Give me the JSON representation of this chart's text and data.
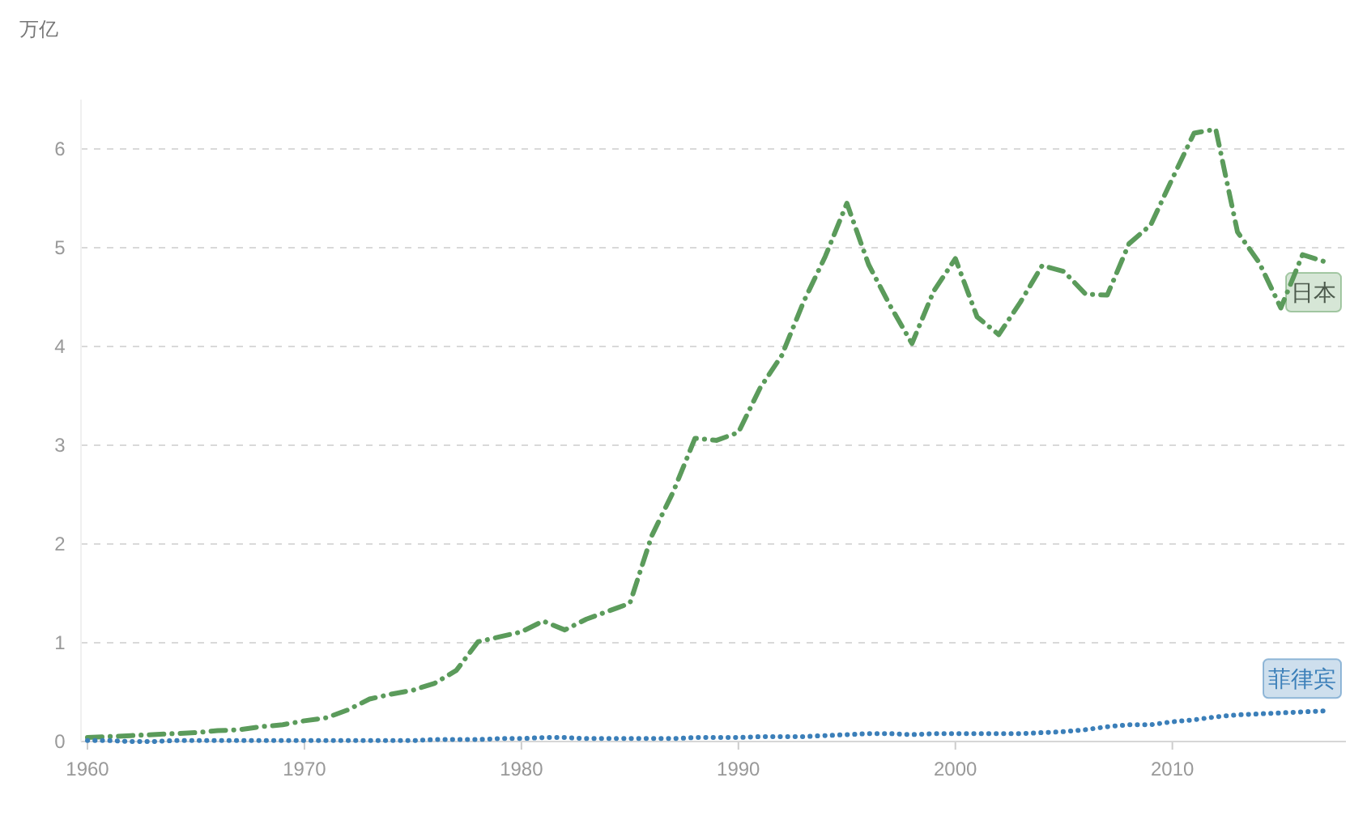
{
  "chart_data": {
    "type": "line",
    "ylabel": "万亿",
    "x": [
      1960,
      1961,
      1962,
      1963,
      1964,
      1965,
      1966,
      1967,
      1968,
      1969,
      1970,
      1971,
      1972,
      1973,
      1974,
      1975,
      1976,
      1977,
      1978,
      1979,
      1980,
      1981,
      1982,
      1983,
      1984,
      1985,
      1986,
      1987,
      1988,
      1989,
      1990,
      1991,
      1992,
      1993,
      1994,
      1995,
      1996,
      1997,
      1998,
      1999,
      2000,
      2001,
      2002,
      2003,
      2004,
      2005,
      2006,
      2007,
      2008,
      2009,
      2010,
      2011,
      2012,
      2013,
      2014,
      2015,
      2016,
      2017
    ],
    "series": [
      {
        "name": "日本",
        "color": "#5b9b5b",
        "line_style": "dashed",
        "values": [
          0.04,
          0.05,
          0.06,
          0.07,
          0.08,
          0.09,
          0.11,
          0.12,
          0.15,
          0.17,
          0.21,
          0.24,
          0.32,
          0.43,
          0.48,
          0.52,
          0.59,
          0.72,
          1.01,
          1.06,
          1.11,
          1.22,
          1.13,
          1.24,
          1.32,
          1.4,
          2.08,
          2.53,
          3.07,
          3.05,
          3.13,
          3.58,
          3.91,
          4.45,
          4.91,
          5.45,
          4.83,
          4.41,
          4.03,
          4.56,
          4.89,
          4.3,
          4.12,
          4.45,
          4.82,
          4.76,
          4.53,
          4.52,
          5.04,
          5.23,
          5.7,
          6.16,
          6.2,
          5.16,
          4.85,
          4.39,
          4.93,
          4.86
        ]
      },
      {
        "name": "菲律宾",
        "color": "#3b7fb9",
        "line_style": "dotted",
        "values": [
          0.01,
          0.01,
          0.0,
          0.0,
          0.01,
          0.01,
          0.01,
          0.01,
          0.01,
          0.01,
          0.01,
          0.01,
          0.01,
          0.01,
          0.01,
          0.01,
          0.02,
          0.02,
          0.02,
          0.03,
          0.03,
          0.04,
          0.04,
          0.03,
          0.03,
          0.03,
          0.03,
          0.03,
          0.04,
          0.04,
          0.04,
          0.05,
          0.05,
          0.05,
          0.06,
          0.07,
          0.08,
          0.08,
          0.07,
          0.08,
          0.08,
          0.08,
          0.08,
          0.08,
          0.09,
          0.1,
          0.12,
          0.15,
          0.17,
          0.17,
          0.2,
          0.22,
          0.25,
          0.27,
          0.28,
          0.29,
          0.3,
          0.31
        ]
      }
    ],
    "xlim": [
      1960,
      2018
    ],
    "xticks": [
      1960,
      1970,
      1980,
      1990,
      2000,
      2010
    ],
    "ylim": [
      0,
      6.5
    ],
    "yticks": [
      0,
      1,
      2,
      3,
      4,
      5,
      6
    ],
    "grid": "y",
    "legend": false,
    "marker": "none"
  }
}
